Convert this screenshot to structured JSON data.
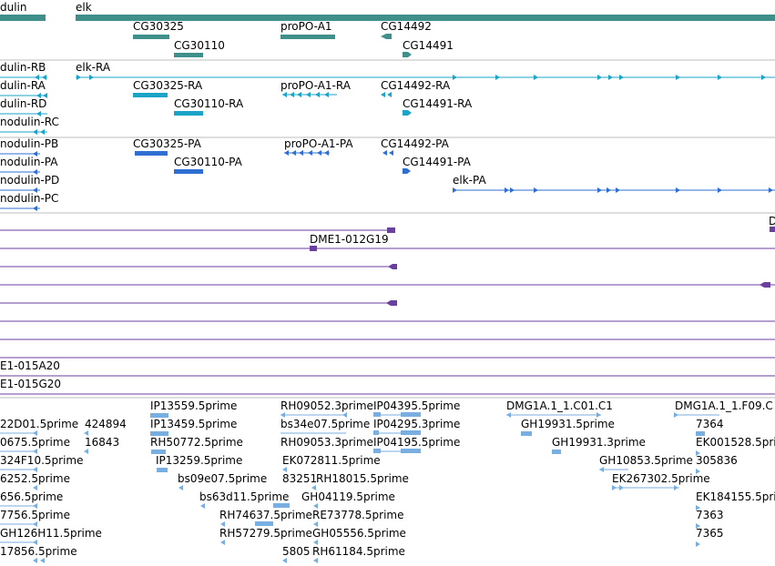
{
  "colors": {
    "gene": "#3f8f8a",
    "mrna_ra": "#1ba3c8",
    "protein_pa": "#2f6fd1",
    "bac": "#6b3fa0",
    "est": "#78aee0",
    "separator": "#bdbdbd"
  },
  "tracks": {
    "genes": [
      "dulin",
      "elk",
      "CG30325",
      "proPO-A1",
      "CG14492",
      "CG30110",
      "CG14491"
    ],
    "transcripts": [
      "dulin-RB",
      "elk-RA",
      "dulin-RA",
      "CG30325-RA",
      "proPO-A1-RA",
      "CG14492-RA",
      "dulin-RD",
      "CG30110-RA",
      "CG14491-RA",
      "nodulin-RC"
    ],
    "proteins": [
      "nodulin-PB",
      "CG30325-PA",
      "proPO-A1-PA",
      "CG14492-PA",
      "nodulin-PA",
      "CG30110-PA",
      "CG14491-PA",
      "nodulin-PD",
      "elk-PA",
      "nodulin-PC"
    ],
    "bacs": [
      "D",
      "DME1-012G19",
      "E1-015A20",
      "E1-015G20"
    ],
    "ests": [
      "IP13559.5prime",
      "RH09052.3prime",
      "IP04395.5prime",
      "DMG1A.1_1.C01.C1",
      "DMG1A.1_1.F09.C",
      "22D01.5prime",
      "424894",
      "IP13459.5prime",
      "bs34e07.5prime",
      "IP04295.3prime",
      "GH19931.5prime",
      "7364",
      "0675.5prime",
      "16843",
      "RH50772.5prime",
      "RH09053.3prime",
      "IP04195.5prime",
      "GH19931.3prime",
      "EK001528.5prime",
      "324F10.5prime",
      "IP13259.5prime",
      "EK072811.5prime",
      "GH10853.5prime",
      "305836",
      "6252.5prime",
      "bs09e07.5prime",
      "83251",
      "RH18015.5prime",
      "EK267302.5prime",
      "656.5prime",
      "bs63d11.5prime",
      "GH04119.5prime",
      "EK184155.5prime",
      "7756.5prime",
      "RH74637.5prime",
      "RE73778.5prime",
      "7363",
      "GH126H11.5prime",
      "RH57279.5prime",
      "GH05556.5prime",
      "7365",
      "17856.5prime",
      "5805",
      "RH61184.5prime"
    ]
  }
}
